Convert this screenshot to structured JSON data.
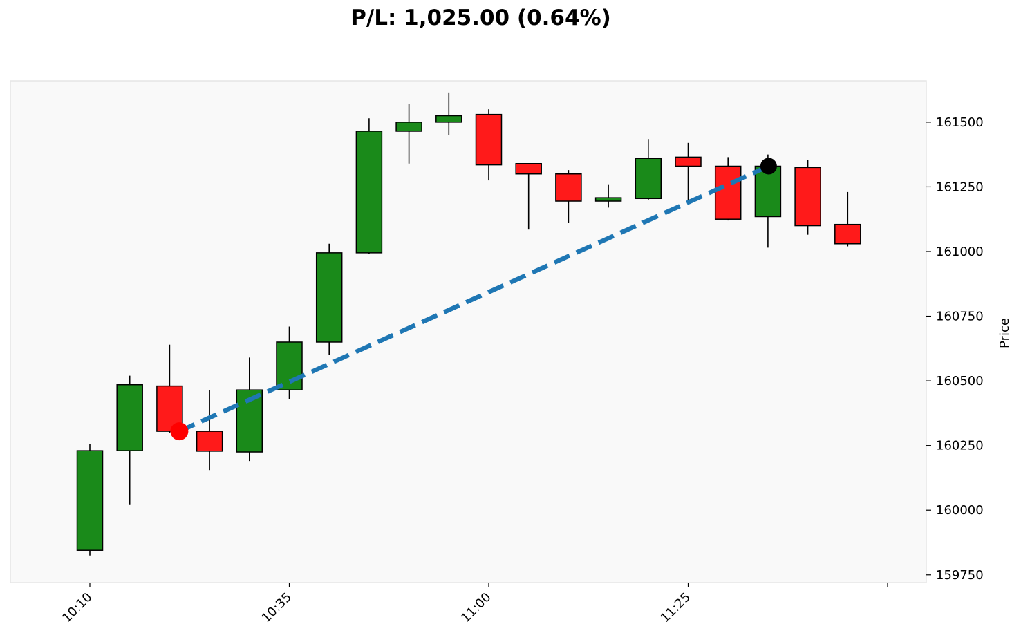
{
  "chart_data": {
    "type": "candlestick",
    "title": "P/L: 1,025.00 (0.64%)",
    "ylabel": "Price",
    "xlabel": "",
    "ylim": [
      159720,
      161660
    ],
    "y_ticks": [
      159750,
      160000,
      160250,
      160500,
      160750,
      161000,
      161250,
      161500
    ],
    "x_tick_labels": [
      "10:10",
      "10:35",
      "11:00",
      "11:25",
      ""
    ],
    "bar_interval_minutes": 5,
    "candles": [
      {
        "time": "10:10",
        "open": 159845,
        "high": 160255,
        "low": 159825,
        "close": 160230
      },
      {
        "time": "10:15",
        "open": 160230,
        "high": 160520,
        "low": 160020,
        "close": 160485
      },
      {
        "time": "10:20",
        "open": 160480,
        "high": 160640,
        "low": 160300,
        "close": 160305
      },
      {
        "time": "10:25",
        "open": 160305,
        "high": 160465,
        "low": 160155,
        "close": 160228
      },
      {
        "time": "10:30",
        "open": 160225,
        "high": 160590,
        "low": 160190,
        "close": 160465
      },
      {
        "time": "10:35",
        "open": 160465,
        "high": 160710,
        "low": 160430,
        "close": 160650
      },
      {
        "time": "10:40",
        "open": 160650,
        "high": 161030,
        "low": 160600,
        "close": 160995
      },
      {
        "time": "10:45",
        "open": 160995,
        "high": 161515,
        "low": 160990,
        "close": 161465
      },
      {
        "time": "10:50",
        "open": 161465,
        "high": 161570,
        "low": 161340,
        "close": 161500
      },
      {
        "time": "10:55",
        "open": 161500,
        "high": 161615,
        "low": 161450,
        "close": 161525
      },
      {
        "time": "11:00",
        "open": 161530,
        "high": 161550,
        "low": 161275,
        "close": 161335
      },
      {
        "time": "11:05",
        "open": 161340,
        "high": 161340,
        "low": 161085,
        "close": 161300
      },
      {
        "time": "11:10",
        "open": 161300,
        "high": 161315,
        "low": 161110,
        "close": 161195
      },
      {
        "time": "11:15",
        "open": 161195,
        "high": 161260,
        "low": 161170,
        "close": 161208
      },
      {
        "time": "11:20",
        "open": 161205,
        "high": 161435,
        "low": 161200,
        "close": 161360
      },
      {
        "time": "11:25",
        "open": 161365,
        "high": 161420,
        "low": 161195,
        "close": 161330
      },
      {
        "time": "11:30",
        "open": 161330,
        "high": 161365,
        "low": 161120,
        "close": 161125
      },
      {
        "time": "11:35",
        "open": 161135,
        "high": 161375,
        "low": 161015,
        "close": 161330
      },
      {
        "time": "11:40",
        "open": 161325,
        "high": 161355,
        "low": 161065,
        "close": 161100
      },
      {
        "time": "11:45",
        "open": 161105,
        "high": 161230,
        "low": 161020,
        "close": 161030
      }
    ],
    "trade": {
      "entry": {
        "time": "10:20",
        "price": 160305
      },
      "exit": {
        "time": "11:35",
        "price": 161330
      }
    },
    "colors": {
      "up": "#1a8a1a",
      "down": "#ff1a1a",
      "edge": "#000000",
      "trade_line": "#1f77b4",
      "entry_marker": "#ff0000",
      "exit_marker": "#000000",
      "plot_background": "#f9f9f9",
      "plot_border": "#e6e6e6"
    },
    "grid": false,
    "y_axis_position": "right"
  }
}
